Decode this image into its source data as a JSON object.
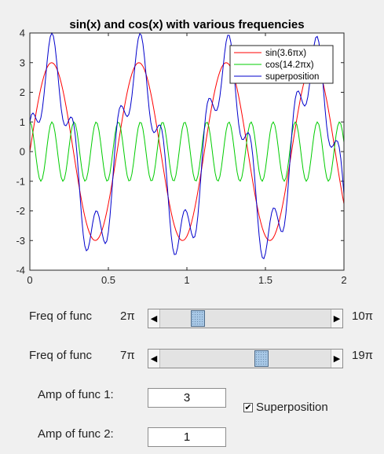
{
  "chart_data": {
    "type": "line",
    "title": "sin(x) and cos(x) with various frequencies",
    "xlabel": "",
    "ylabel": "",
    "xlim": [
      0,
      2
    ],
    "ylim": [
      -4,
      4
    ],
    "x_ticks": [
      "0",
      "0.5",
      "1",
      "1.5",
      "2"
    ],
    "y_ticks": [
      "4",
      "3",
      "2",
      "1",
      "0",
      "-1",
      "-2",
      "-3",
      "-4"
    ],
    "legend_position": "top-right",
    "series": [
      {
        "name": "sin(3.6πx)",
        "color": "#ff0000",
        "amplitude": 3,
        "freq_multiplier": 3.6,
        "func": "sin"
      },
      {
        "name": "cos(14.2πx)",
        "color": "#00cc00",
        "amplitude": 1,
        "freq_multiplier": 14.2,
        "func": "cos"
      },
      {
        "name": "superposition",
        "color": "#0000cc"
      }
    ]
  },
  "controls": {
    "freq1": {
      "label": "Freq of func",
      "min_label": "2π",
      "max_label": "10π",
      "value_fraction": 0.2
    },
    "freq2": {
      "label": "Freq of func",
      "min_label": "7π",
      "max_label": "19π",
      "value_fraction": 0.6
    },
    "amp1": {
      "label": "Amp of func 1:",
      "value": "3"
    },
    "amp2": {
      "label": "Amp of func 2:",
      "value": "1"
    },
    "superposition": {
      "label": "Superposition",
      "checked": true
    }
  }
}
